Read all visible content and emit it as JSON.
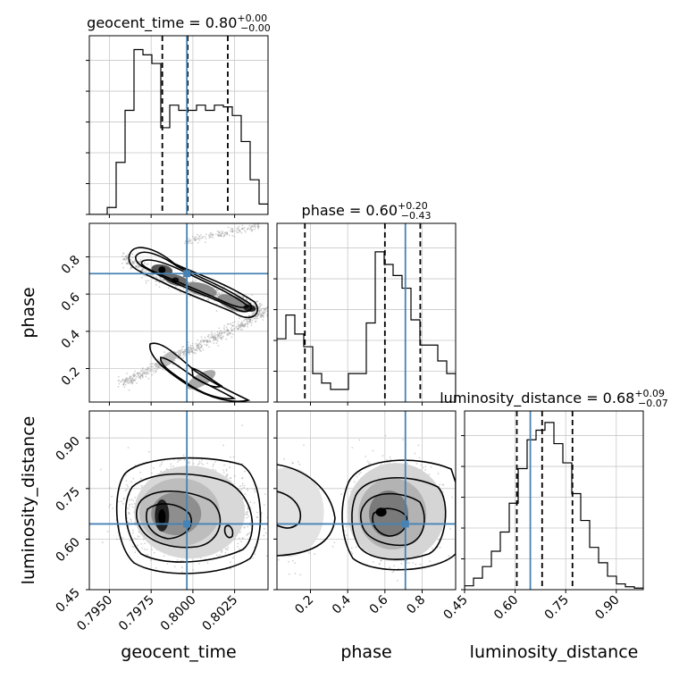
{
  "chart_data": {
    "type": "corner",
    "parameters": [
      {
        "name": "geocent_time",
        "axis_label": "geocent_time",
        "range": [
          0.7938,
          0.8045
        ],
        "ticks": [
          0.795,
          0.7975,
          0.8,
          0.8025
        ],
        "tick_labels": [
          "0.7950",
          "0.7975",
          "0.8000",
          "0.8025"
        ],
        "truth": 0.79964,
        "title": {
          "main": "geocent_time = 0.80",
          "sup": "+0.00",
          "sub": "−0.00"
        },
        "quantiles": [
          0.79817,
          0.79969,
          0.80209
        ],
        "histogram": {
          "counts": [
            0,
            0,
            0.04,
            0.3,
            0.6,
            0.95,
            0.92,
            0.87,
            0.5,
            0.63,
            0.6,
            0.6,
            0.63,
            0.6,
            0.63,
            0.62,
            0.57,
            0.42,
            0.2,
            0.06
          ],
          "ymax": 1.03
        }
      },
      {
        "name": "phase",
        "axis_label": "phase",
        "range": [
          0.02,
          0.98
        ],
        "ticks": [
          0.2,
          0.4,
          0.6,
          0.8
        ],
        "tick_labels": [
          "0.2",
          "0.4",
          "0.6",
          "0.8"
        ],
        "truth": 0.71,
        "title": {
          "main": "phase = 0.60",
          "sup": "+0.20",
          "sub": "−0.43"
        },
        "quantiles": [
          0.17,
          0.6,
          0.79
        ],
        "histogram": {
          "counts": [
            0.4,
            0.55,
            0.43,
            0.35,
            0.18,
            0.12,
            0.08,
            0.08,
            0.18,
            0.18,
            0.5,
            0.95,
            0.87,
            0.8,
            0.72,
            0.52,
            0.36,
            0.36,
            0.26,
            0.18
          ],
          "ymax": 1.13
        }
      },
      {
        "name": "luminosity_distance",
        "axis_label": "luminosity_distance",
        "range": [
          0.45,
          0.98
        ],
        "ticks": [
          0.45,
          0.6,
          0.75,
          0.9
        ],
        "tick_labels": [
          "0.45",
          "0.60",
          "0.75",
          "0.90"
        ],
        "truth": 0.645,
        "title": {
          "main": "luminosity_distance = 0.68",
          "sup": "+0.09",
          "sub": "−0.07"
        },
        "quantiles": [
          0.605,
          0.68,
          0.77
        ],
        "histogram": {
          "counts": [
            0.02,
            0.06,
            0.12,
            0.2,
            0.3,
            0.45,
            0.63,
            0.78,
            0.83,
            0.87,
            0.76,
            0.66,
            0.5,
            0.36,
            0.22,
            0.14,
            0.07,
            0.03,
            0.015,
            0.008
          ],
          "ymax": 0.93
        }
      }
    ],
    "line_style": {
      "truth_color": "#4682b4",
      "quantile_style": "dashed",
      "grid": true
    }
  }
}
